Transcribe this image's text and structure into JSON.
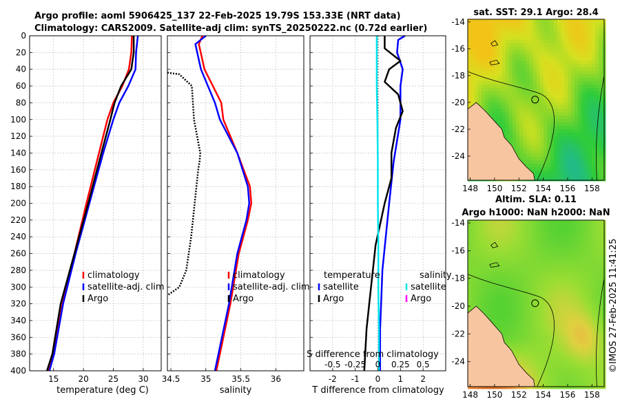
{
  "title": {
    "line1": "Argo profile: aoml 5906425_137 22-Feb-2025 19.79S 153.33E (NRT data)",
    "line2": "Climatology: CARS2009. Satellite-adj clim: synTS_20250222.nc (0.72d earlier)"
  },
  "copyright": "©IMOS 27-Feb-2025 11:41:25",
  "colors": {
    "climatology": "#ff0000",
    "satellite": "#0000ff",
    "argo": "#000000",
    "salinity_diff": "#00e5ee",
    "salinity_legend": "#ff00ff",
    "land": "#f7c59f",
    "coast": "#000000"
  },
  "chart_data": [
    {
      "type": "line",
      "name": "temperature",
      "xlabel": "temperature (deg C)",
      "ylabel": "",
      "xlim": [
        11,
        33
      ],
      "ylim": [
        0,
        400
      ],
      "xticks": [
        15,
        20,
        25,
        30
      ],
      "yticks": [
        0,
        20,
        40,
        60,
        80,
        100,
        120,
        140,
        160,
        180,
        200,
        220,
        240,
        260,
        280,
        300,
        320,
        340,
        360,
        380,
        400
      ],
      "legend": [
        "climatology",
        "satellite-adj. clim",
        "Argo"
      ],
      "series": [
        {
          "name": "climatology",
          "color": "#ff0000",
          "depth": [
            0,
            20,
            40,
            60,
            80,
            100,
            140,
            200,
            260,
            320,
            380,
            400
          ],
          "values": [
            28.1,
            28.0,
            27.6,
            26.5,
            25.0,
            24.0,
            22.6,
            20.5,
            18.5,
            16.5,
            15.0,
            14.2
          ]
        },
        {
          "name": "satellite-adj. clim",
          "color": "#0000ff",
          "depth": [
            0,
            20,
            40,
            60,
            80,
            100,
            140,
            200,
            260,
            320,
            380,
            400
          ],
          "values": [
            29.1,
            28.8,
            28.7,
            27.5,
            26.0,
            25.0,
            23.3,
            21.0,
            18.7,
            16.6,
            15.1,
            14.3
          ]
        },
        {
          "name": "Argo",
          "color": "#000000",
          "depth": [
            0,
            20,
            40,
            60,
            80,
            100,
            140,
            200,
            260,
            320,
            380,
            400
          ],
          "values": [
            28.4,
            28.4,
            28.0,
            26.3,
            25.2,
            24.5,
            23.0,
            20.8,
            18.5,
            16.2,
            14.8,
            13.9
          ]
        }
      ]
    },
    {
      "type": "line",
      "name": "salinity",
      "xlabel": "salinity",
      "xlim": [
        34.45,
        36.4
      ],
      "ylim": [
        0,
        400
      ],
      "xticks": [
        34.5,
        35,
        35.5,
        36
      ],
      "xticklabels": [
        "34.5",
        "35",
        "35.5",
        "36"
      ],
      "legend": [
        "climatology",
        "satellite-adj. clim",
        "Argo"
      ],
      "series": [
        {
          "name": "climatology",
          "color": "#ff0000",
          "depth": [
            0,
            10,
            40,
            80,
            100,
            140,
            180,
            200,
            220,
            260,
            320,
            400
          ],
          "values": [
            34.95,
            34.9,
            34.98,
            35.22,
            35.25,
            35.45,
            35.63,
            35.65,
            35.6,
            35.47,
            35.35,
            35.15
          ]
        },
        {
          "name": "satellite-adj. clim",
          "color": "#0000ff",
          "depth": [
            0,
            10,
            40,
            80,
            100,
            140,
            180,
            200,
            220,
            260,
            320,
            400
          ],
          "values": [
            35.0,
            34.85,
            34.93,
            35.13,
            35.2,
            35.45,
            35.6,
            35.62,
            35.58,
            35.45,
            35.33,
            35.13
          ]
        },
        {
          "name": "Argo",
          "color": "#000000",
          "depth": [
            44,
            46,
            60,
            100,
            140,
            150,
            160,
            200,
            240,
            280,
            300,
            310
          ],
          "values": [
            34.45,
            34.62,
            34.8,
            34.83,
            34.92,
            34.91,
            34.89,
            34.84,
            34.79,
            34.72,
            34.62,
            34.45
          ]
        }
      ]
    },
    {
      "type": "line",
      "name": "difference",
      "xlabel": "T difference from climatology",
      "xlabel_top": "S difference from climatology",
      "xlim": [
        -3,
        3
      ],
      "ylim": [
        0,
        400
      ],
      "xticks": [
        -2,
        -1,
        0,
        1,
        2
      ],
      "xticklabels": [
        "-2",
        "-1",
        "0",
        "1",
        "2"
      ],
      "s_ticklabels": [
        "-0.5",
        "-0.25",
        "0",
        "0.25",
        "0.5"
      ],
      "legend_titles": [
        "temperature",
        "salinity"
      ],
      "legend_temperature": [
        "satellite",
        "Argo"
      ],
      "legend_salinity": [
        "satellite",
        "Argo"
      ],
      "series": [
        {
          "name": "temperature satellite",
          "color": "#0000ff",
          "depth": [
            0,
            5,
            20,
            40,
            60,
            80,
            100,
            150,
            200,
            280,
            350,
            400
          ],
          "values": [
            1.2,
            0.9,
            0.85,
            1.1,
            1.0,
            1.0,
            1.0,
            0.7,
            0.5,
            0.2,
            0.1,
            0.1
          ]
        },
        {
          "name": "temperature Argo",
          "color": "#000000",
          "depth": [
            0,
            15,
            30,
            40,
            55,
            70,
            90,
            110,
            140,
            170,
            200,
            250,
            300,
            350,
            400
          ],
          "values": [
            0.3,
            0.3,
            1.0,
            0.5,
            0.3,
            0.9,
            1.1,
            0.8,
            0.6,
            0.6,
            0.3,
            -0.1,
            -0.3,
            -0.5,
            -0.6
          ]
        },
        {
          "name": "salinity satellite",
          "color": "#00e5ee",
          "depth": [
            0,
            20,
            60,
            100,
            150,
            200,
            250,
            300,
            350,
            400
          ],
          "values": [
            -0.05,
            -0.05,
            -0.05,
            -0.02,
            0.0,
            0.0,
            0.02,
            0.02,
            0.05,
            0.05
          ]
        }
      ]
    },
    {
      "type": "heatmap",
      "name": "sst map",
      "title": "sat. SST: 29.1 Argo: 28.4",
      "xlim": [
        147.8,
        159.0
      ],
      "ylim": [
        -25.8,
        -13.8
      ],
      "xticks": [
        148,
        150,
        152,
        154,
        156,
        158
      ],
      "yticks": [
        -14,
        -16,
        -18,
        -20,
        -22,
        -24
      ]
    },
    {
      "type": "heatmap",
      "name": "sla map",
      "title": "Altim. SLA: 0.11",
      "subtitle": "Argo h1000: NaN h2000: NaN",
      "xlim": [
        147.8,
        159.0
      ],
      "ylim": [
        -25.8,
        -13.8
      ],
      "xticks": [
        148,
        150,
        152,
        154,
        156,
        158
      ],
      "yticks": [
        -14,
        -16,
        -18,
        -20,
        -22,
        -24
      ]
    }
  ]
}
